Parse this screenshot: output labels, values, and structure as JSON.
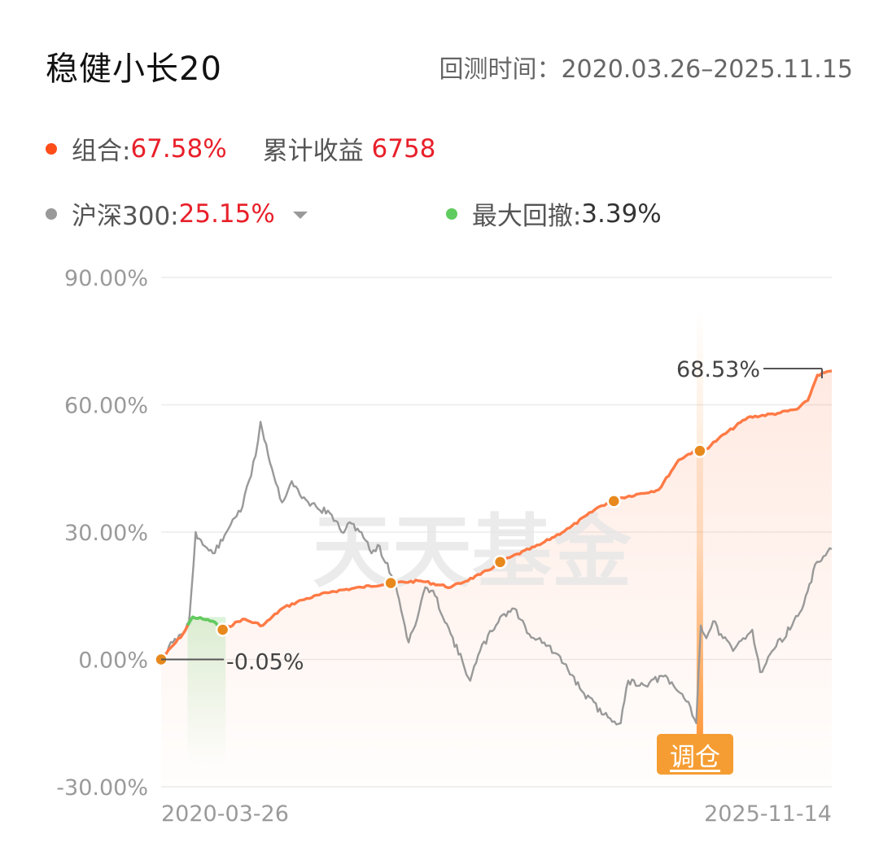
{
  "header": {
    "title": "稳健小长20",
    "period_label": "回测时间：",
    "period_value": "2020.03.26–2025.11.15"
  },
  "legend": {
    "portfolio": {
      "label": "组合:",
      "value": "67.58%",
      "color": "#ff4d1a"
    },
    "cumulative": {
      "label": "累计收益",
      "value": "6758"
    },
    "benchmark": {
      "label": "沪深300:",
      "value": "25.15%",
      "color": "#999999",
      "dropdown_icon": "caret-down-icon"
    },
    "drawdown": {
      "label": "最大回撤:",
      "value": "3.39%",
      "color": "#5fcc5f"
    }
  },
  "watermark": "天天基金",
  "rebalance_button": "调仓",
  "chart_data": {
    "type": "line",
    "y_ticks": [
      "90.00%",
      "60.00%",
      "30.00%",
      "0.00%",
      "-30.00%"
    ],
    "ylim": [
      -30,
      90
    ],
    "x_tick_labels": [
      "2020-03-26",
      "2025-11-14"
    ],
    "xlim": [
      "2020-03-26",
      "2025-11-14"
    ],
    "grid": true,
    "annotations": {
      "start": "-0.05%",
      "end": "68.53%"
    },
    "series": [
      {
        "name": "组合",
        "color": "#ff7a45",
        "x": [
          "2020-03-26",
          "2020-06-01",
          "2020-07-01",
          "2020-08-01",
          "2020-09-01",
          "2020-10-01",
          "2020-12-01",
          "2021-02-01",
          "2021-04-01",
          "2021-06-01",
          "2021-09-01",
          "2021-12-01",
          "2022-03-01",
          "2022-06-01",
          "2022-09-01",
          "2022-12-01",
          "2023-03-01",
          "2023-06-01",
          "2023-09-01",
          "2023-12-01",
          "2024-02-01",
          "2024-04-01",
          "2024-06-01",
          "2024-08-01",
          "2024-09-15",
          "2024-10-15",
          "2024-12-01",
          "2025-03-01",
          "2025-06-01",
          "2025-08-01",
          "2025-09-01",
          "2025-10-01",
          "2025-11-14"
        ],
        "values": [
          0,
          6,
          10,
          9.5,
          9,
          7,
          9.5,
          8,
          12,
          14,
          16,
          17,
          18,
          18.5,
          17,
          20,
          24,
          27,
          31,
          36,
          38,
          39,
          40,
          47,
          49,
          49,
          52,
          57,
          58,
          59,
          61,
          67,
          68
        ]
      },
      {
        "name": "沪深300",
        "color": "#999999",
        "x": [
          "2020-03-26",
          "2020-04-01",
          "2020-05-01",
          "2020-06-01",
          "2020-06-20",
          "2020-07-10",
          "2020-08-01",
          "2020-09-01",
          "2020-10-01",
          "2020-11-01",
          "2020-12-01",
          "2021-01-10",
          "2021-01-25",
          "2021-03-01",
          "2021-04-01",
          "2021-05-01",
          "2021-06-01",
          "2021-07-15",
          "2021-09-01",
          "2021-10-01",
          "2021-11-01",
          "2021-12-01",
          "2022-01-01",
          "2022-01-20",
          "2022-03-15",
          "2022-04-25",
          "2022-05-15",
          "2022-06-15",
          "2022-07-15",
          "2022-09-01",
          "2022-10-31",
          "2022-11-30",
          "2023-01-31",
          "2023-03-15",
          "2023-04-30",
          "2023-06-15",
          "2023-08-15",
          "2023-10-15",
          "2023-12-15",
          "2024-02-05",
          "2024-02-28",
          "2024-04-15",
          "2024-06-15",
          "2024-08-31",
          "2024-09-24",
          "2024-10-08",
          "2024-10-25",
          "2024-11-15",
          "2024-12-15",
          "2025-01-15",
          "2025-02-15",
          "2025-03-15",
          "2025-04-08",
          "2025-05-15",
          "2025-07-15",
          "2025-08-20",
          "2025-09-30",
          "2025-11-14"
        ],
        "values": [
          0,
          1,
          4,
          6,
          9,
          30,
          27,
          25,
          28,
          33,
          36,
          48,
          56,
          45,
          37,
          42,
          38,
          36,
          34,
          30,
          32,
          30,
          25,
          27,
          18,
          4,
          8,
          17,
          15,
          6,
          -5,
          2,
          10,
          12,
          6,
          4,
          -1,
          -8,
          -13,
          -15,
          -5,
          -6,
          -4,
          -10,
          -15,
          8,
          5,
          9,
          5,
          2,
          5,
          7,
          -3,
          2,
          8,
          13,
          23,
          26
        ]
      }
    ],
    "markers": {
      "rebalance_dates": [
        "2020-03-26",
        "2020-10-01",
        "2022-03-01",
        "2023-01-31",
        "2024-01-15",
        "2024-10-05"
      ],
      "drawdown_period": [
        "2020-06-15",
        "2020-10-10"
      ]
    }
  }
}
